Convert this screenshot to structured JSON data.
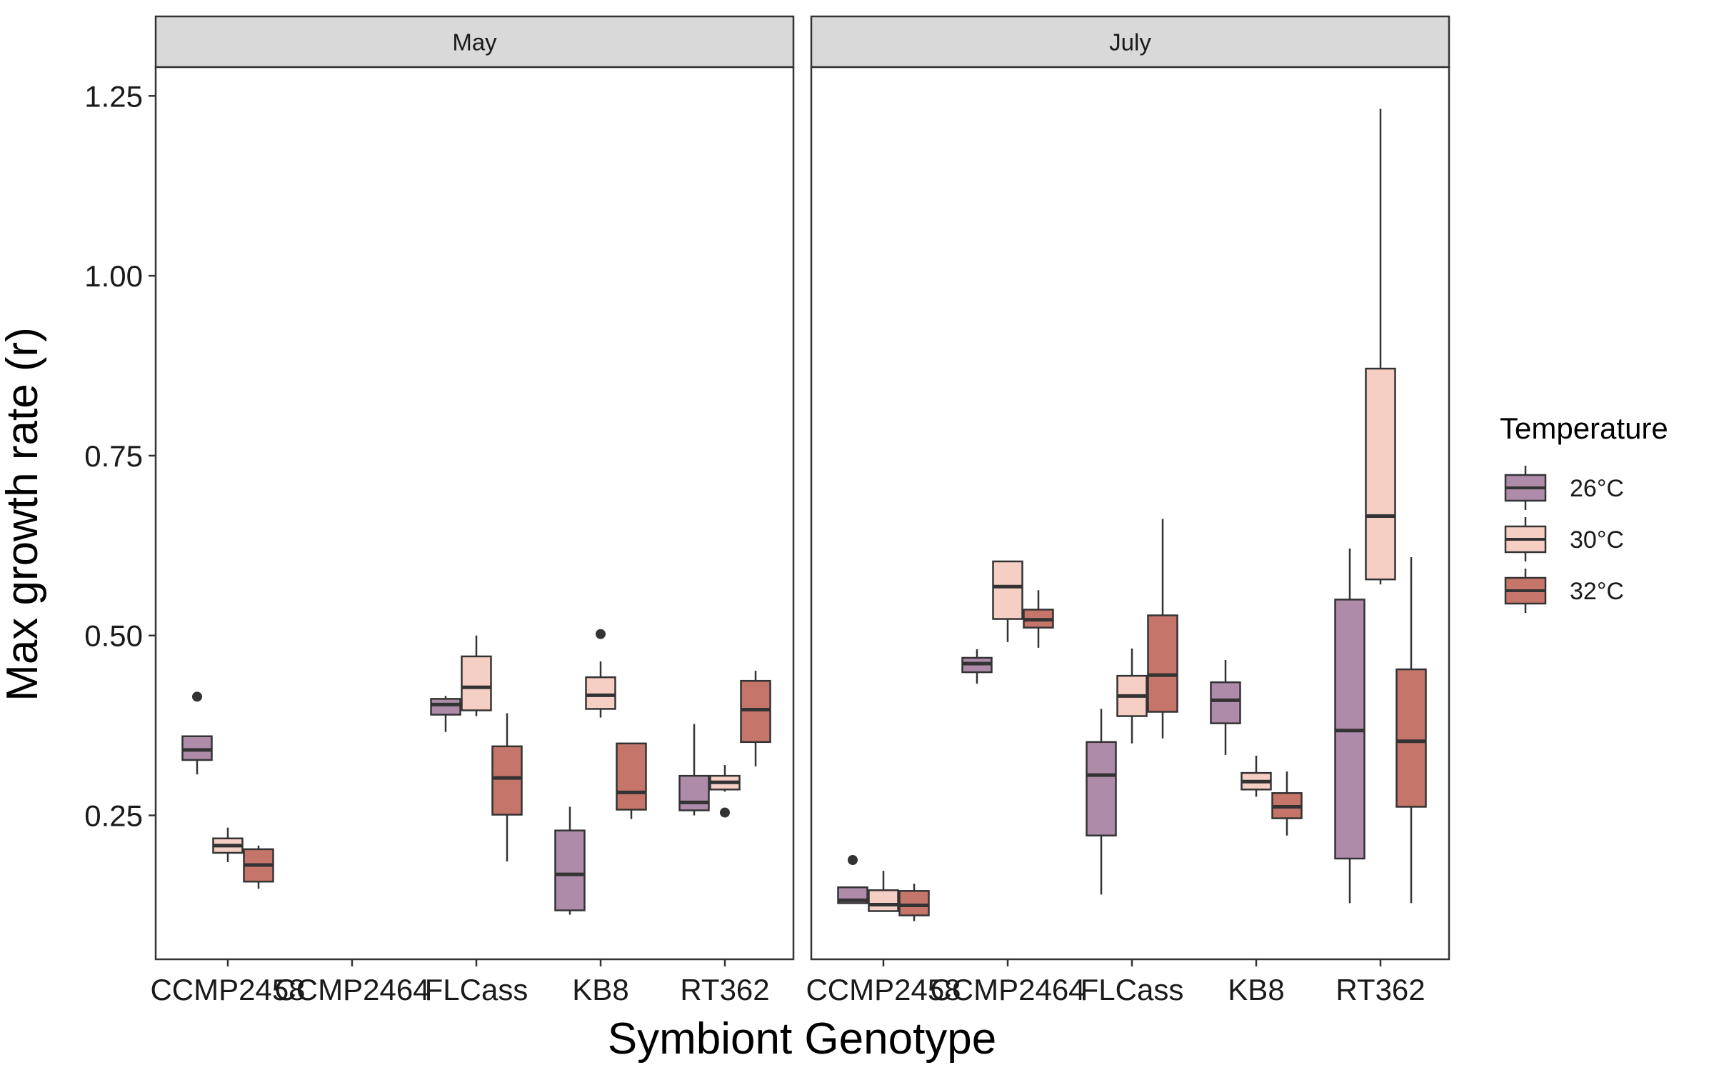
{
  "chart_data": {
    "type": "boxplot",
    "title": "",
    "xlabel": "Symbiont Genotype",
    "ylabel": "Max growth rate (r)",
    "ylim": [
      0.05,
      1.29
    ],
    "yticks": [
      "0.25",
      "0.50",
      "0.75",
      "1.00",
      "1.25"
    ],
    "ytick_values": [
      0.25,
      0.5,
      0.75,
      1.0,
      1.25
    ],
    "categories": [
      "CCMP2458",
      "CCMP2464",
      "FLCass",
      "KB8",
      "RT362"
    ],
    "grid": false,
    "legend": {
      "title": "Temperature",
      "placement": "right",
      "entries": [
        {
          "label": "26°C",
          "color": "#ae8ba9"
        },
        {
          "label": "30°C",
          "color": "#f5cfc4"
        },
        {
          "label": "32°C",
          "color": "#c6756a"
        }
      ]
    },
    "panels": [
      {
        "name": "May",
        "boxes": [
          {
            "category": "CCMP2458",
            "series": "26°C",
            "lower_whisker": 0.307,
            "q1": 0.327,
            "median": 0.341,
            "q3": 0.36,
            "upper_whisker": 0.36,
            "outliers": [
              0.415
            ]
          },
          {
            "category": "CCMP2458",
            "series": "30°C",
            "lower_whisker": 0.185,
            "q1": 0.198,
            "median": 0.208,
            "q3": 0.218,
            "upper_whisker": 0.233,
            "outliers": []
          },
          {
            "category": "CCMP2458",
            "series": "32°C",
            "lower_whisker": 0.148,
            "q1": 0.158,
            "median": 0.181,
            "q3": 0.203,
            "upper_whisker": 0.208,
            "outliers": []
          },
          {
            "category": "FLCass",
            "series": "26°C",
            "lower_whisker": 0.366,
            "q1": 0.39,
            "median": 0.404,
            "q3": 0.412,
            "upper_whisker": 0.416,
            "outliers": []
          },
          {
            "category": "FLCass",
            "series": "30°C",
            "lower_whisker": 0.388,
            "q1": 0.396,
            "median": 0.428,
            "q3": 0.471,
            "upper_whisker": 0.5,
            "outliers": []
          },
          {
            "category": "FLCass",
            "series": "32°C",
            "lower_whisker": 0.186,
            "q1": 0.251,
            "median": 0.302,
            "q3": 0.346,
            "upper_whisker": 0.392,
            "outliers": []
          },
          {
            "category": "KB8",
            "series": "26°C",
            "lower_whisker": 0.112,
            "q1": 0.118,
            "median": 0.168,
            "q3": 0.229,
            "upper_whisker": 0.262,
            "outliers": []
          },
          {
            "category": "KB8",
            "series": "30°C",
            "lower_whisker": 0.386,
            "q1": 0.398,
            "median": 0.417,
            "q3": 0.442,
            "upper_whisker": 0.464,
            "outliers": [
              0.502
            ]
          },
          {
            "category": "KB8",
            "series": "32°C",
            "lower_whisker": 0.245,
            "q1": 0.258,
            "median": 0.282,
            "q3": 0.35,
            "upper_whisker": 0.35,
            "outliers": []
          },
          {
            "category": "RT362",
            "series": "26°C",
            "lower_whisker": 0.25,
            "q1": 0.257,
            "median": 0.268,
            "q3": 0.305,
            "upper_whisker": 0.377,
            "outliers": []
          },
          {
            "category": "RT362",
            "series": "30°C",
            "lower_whisker": 0.283,
            "q1": 0.286,
            "median": 0.296,
            "q3": 0.305,
            "upper_whisker": 0.32,
            "outliers": [
              0.254
            ]
          },
          {
            "category": "RT362",
            "series": "32°C",
            "lower_whisker": 0.318,
            "q1": 0.352,
            "median": 0.397,
            "q3": 0.437,
            "upper_whisker": 0.451,
            "outliers": []
          }
        ]
      },
      {
        "name": "July",
        "boxes": [
          {
            "category": "CCMP2458",
            "series": "26°C",
            "lower_whisker": 0.128,
            "q1": 0.128,
            "median": 0.132,
            "q3": 0.15,
            "upper_whisker": 0.15,
            "outliers": [
              0.188
            ]
          },
          {
            "category": "CCMP2458",
            "series": "30°C",
            "lower_whisker": 0.117,
            "q1": 0.117,
            "median": 0.126,
            "q3": 0.146,
            "upper_whisker": 0.173,
            "outliers": []
          },
          {
            "category": "CCMP2458",
            "series": "32°C",
            "lower_whisker": 0.103,
            "q1": 0.111,
            "median": 0.125,
            "q3": 0.145,
            "upper_whisker": 0.155,
            "outliers": []
          },
          {
            "category": "CCMP2464",
            "series": "26°C",
            "lower_whisker": 0.433,
            "q1": 0.449,
            "median": 0.461,
            "q3": 0.469,
            "upper_whisker": 0.481,
            "outliers": []
          },
          {
            "category": "CCMP2464",
            "series": "30°C",
            "lower_whisker": 0.491,
            "q1": 0.523,
            "median": 0.568,
            "q3": 0.603,
            "upper_whisker": 0.603,
            "outliers": []
          },
          {
            "category": "CCMP2464",
            "series": "32°C",
            "lower_whisker": 0.483,
            "q1": 0.511,
            "median": 0.522,
            "q3": 0.536,
            "upper_whisker": 0.563,
            "outliers": []
          },
          {
            "category": "FLCass",
            "series": "26°C",
            "lower_whisker": 0.14,
            "q1": 0.222,
            "median": 0.306,
            "q3": 0.352,
            "upper_whisker": 0.398,
            "outliers": []
          },
          {
            "category": "FLCass",
            "series": "30°C",
            "lower_whisker": 0.35,
            "q1": 0.388,
            "median": 0.416,
            "q3": 0.444,
            "upper_whisker": 0.482,
            "outliers": []
          },
          {
            "category": "FLCass",
            "series": "32°C",
            "lower_whisker": 0.357,
            "q1": 0.394,
            "median": 0.445,
            "q3": 0.528,
            "upper_whisker": 0.662,
            "outliers": []
          },
          {
            "category": "KB8",
            "series": "26°C",
            "lower_whisker": 0.334,
            "q1": 0.378,
            "median": 0.41,
            "q3": 0.435,
            "upper_whisker": 0.466,
            "outliers": []
          },
          {
            "category": "KB8",
            "series": "30°C",
            "lower_whisker": 0.276,
            "q1": 0.286,
            "median": 0.297,
            "q3": 0.309,
            "upper_whisker": 0.333,
            "outliers": []
          },
          {
            "category": "KB8",
            "series": "32°C",
            "lower_whisker": 0.222,
            "q1": 0.246,
            "median": 0.262,
            "q3": 0.281,
            "upper_whisker": 0.311,
            "outliers": []
          },
          {
            "category": "RT362",
            "series": "26°C",
            "lower_whisker": 0.128,
            "q1": 0.19,
            "median": 0.368,
            "q3": 0.55,
            "upper_whisker": 0.621,
            "outliers": []
          },
          {
            "category": "RT362",
            "series": "30°C",
            "lower_whisker": 0.571,
            "q1": 0.578,
            "median": 0.666,
            "q3": 0.871,
            "upper_whisker": 1.232,
            "outliers": []
          },
          {
            "category": "RT362",
            "series": "32°C",
            "lower_whisker": 0.128,
            "q1": 0.262,
            "median": 0.353,
            "q3": 0.453,
            "upper_whisker": 0.609,
            "outliers": []
          }
        ]
      }
    ]
  }
}
